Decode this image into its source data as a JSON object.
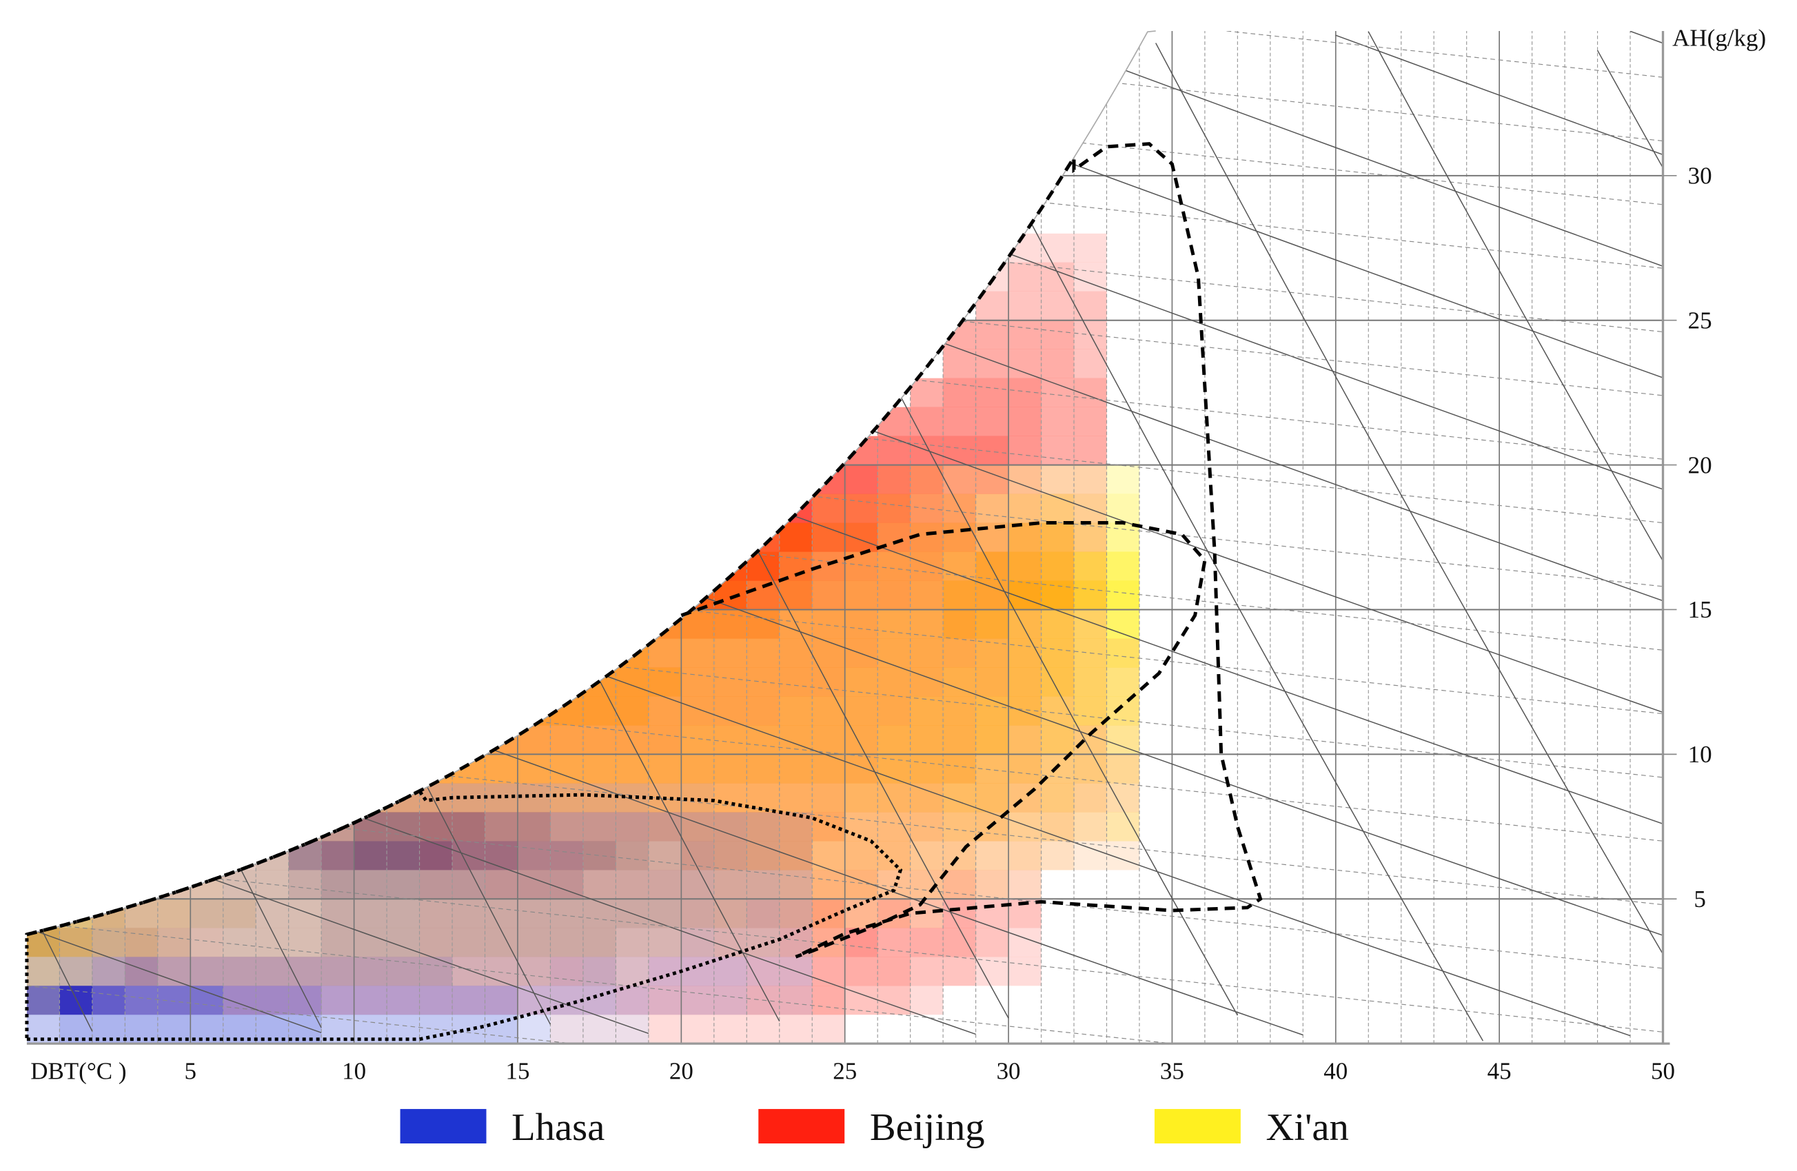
{
  "chart_data": {
    "type": "heatmap",
    "subtype": "psychrometric chart with climate frequency distributions",
    "xlabel": "DBT(°C )",
    "ylabel": "AH(g/kg)",
    "xlim": [
      0,
      50
    ],
    "ylim": [
      0,
      35
    ],
    "xticks": [
      "5",
      "10",
      "15",
      "20",
      "25",
      "30",
      "35",
      "40",
      "45",
      "50"
    ],
    "xtick_values": [
      5,
      10,
      15,
      20,
      25,
      30,
      35,
      40,
      45,
      50
    ],
    "yticks": [
      "5",
      "10",
      "15",
      "20",
      "25",
      "30"
    ],
    "ytick_values": [
      5,
      10,
      15,
      20,
      25,
      30
    ],
    "grid": true,
    "legend_position": "bottom",
    "cell_size": {
      "dbt": 1,
      "ah": 1
    },
    "intensity_scale": "0-9 per cell, row index = AH lower bound, character index = DBT lower bound",
    "series": [
      {
        "name": "Lhasa",
        "color": "#1e34d2",
        "rows": [
          "233333333222222111100000",
          "797666555444444333322211",
          "455655555555544444333322",
          "334444444555555555444332",
          "223334444555555555555443",
          "012233445666666665555443",
          "000123347899988777655432",
          "000000123688887766654432",
          "000000012333333322211"
        ],
        "zone": [
          [
            0,
            0.15
          ],
          [
            12,
            0.15
          ],
          [
            14,
            0.6
          ],
          [
            17,
            1.5
          ],
          [
            20,
            2.5
          ],
          [
            23,
            3.6
          ],
          [
            25,
            4.6
          ],
          [
            26.5,
            5.3
          ],
          [
            26.7,
            6.0
          ],
          [
            25.8,
            7.0
          ],
          [
            24,
            7.8
          ],
          [
            21,
            8.4
          ],
          [
            17,
            8.6
          ],
          [
            13,
            8.5
          ],
          [
            12.2,
            8.4
          ]
        ]
      },
      {
        "name": "Beijing",
        "color": "#ff2010",
        "rows": [
          "0000000000000000111111111",
          "1111112222222222223333333221",
          "2223333333333444433333333332211",
          "3334443333334444444444444433321",
          "2233333333334444444455555443322",
          "1122333333334455555555555544432",
          "0012233334445555555566665554433211",
          "0000123445556666666666666555443321",
          "0000012445566666666666666555444332",
          "0000000234566666666666666655544332",
          "0000000034566677777766666655544331",
          "0000000004566677777777766665544321",
          "0000000000066677777777777666554321",
          "0000000000006777777777777766654321",
          "0000000000000077788888877766654320",
          "0000000000000000009999887777665420",
          "0000000000000000000099987777665420",
          "0000000000000000000000898877765430",
          "0000000000000000000000077776654330",
          "0000000000000000000000006666554330",
          "0000000000000000000000000555554330",
          "0000000000000000000000000044444330",
          "0000000000000000000000000003444330",
          "0000000000000000000000000000333320",
          "0000000000000000000000000000333320",
          "0000000000000000000000000000022220",
          "0000000000000000000000000000012210",
          "0000000000000000000000000000001110"
        ],
        "zone": [
          [
            32,
            30.2
          ],
          [
            33,
            31
          ],
          [
            34.3,
            31.1
          ],
          [
            35,
            30.4
          ],
          [
            35.8,
            26.5
          ],
          [
            36.3,
            17
          ],
          [
            36.5,
            10
          ],
          [
            37,
            7.5
          ],
          [
            37.7,
            5
          ],
          [
            37.3,
            4.7
          ],
          [
            35,
            4.6
          ],
          [
            31,
            4.9
          ],
          [
            27,
            4.5
          ],
          [
            25,
            3.8
          ],
          [
            23.5,
            3.0
          ]
        ]
      },
      {
        "name": "Xi'an",
        "color": "#fff020",
        "rows": [
          "0",
          "1",
          "5422222222222222111",
          "8766544444444444443322211",
          "5665555444444444444444332211",
          "0123444444444444444444444433221",
          "0001233444444444455555555554433211",
          "0000012345555555555555555555554433",
          "0000000345666666666666666666665543",
          "0000000045777777777777777777766554",
          "0000000004577777777777777777776654",
          "0000000000577888888777777777777665",
          "0000000000057888888877777777777765",
          "0000000000005888888777777777777766",
          "0000000000000078888777777777887766",
          "0000000000000000005544455667889987",
          "0000000000000000000033344566788876",
          "0000000000000000000000233345667754",
          "0000000000000000000000002233455543",
          "0000000000000000000000000012223332"
        ],
        "zone": [
          [
            20,
            14.8
          ],
          [
            24,
            16.4
          ],
          [
            27.3,
            17.6
          ],
          [
            31,
            18
          ],
          [
            33.5,
            18
          ],
          [
            35.3,
            17.6
          ],
          [
            36,
            16.7
          ],
          [
            35.7,
            14.8
          ],
          [
            34.6,
            12.8
          ],
          [
            32.5,
            10.7
          ],
          [
            30.8,
            8.8
          ],
          [
            28.7,
            6.8
          ],
          [
            27.3,
            4.8
          ],
          [
            26,
            4.1
          ],
          [
            24,
            3.2
          ],
          [
            23.5,
            3.0
          ]
        ]
      }
    ]
  }
}
